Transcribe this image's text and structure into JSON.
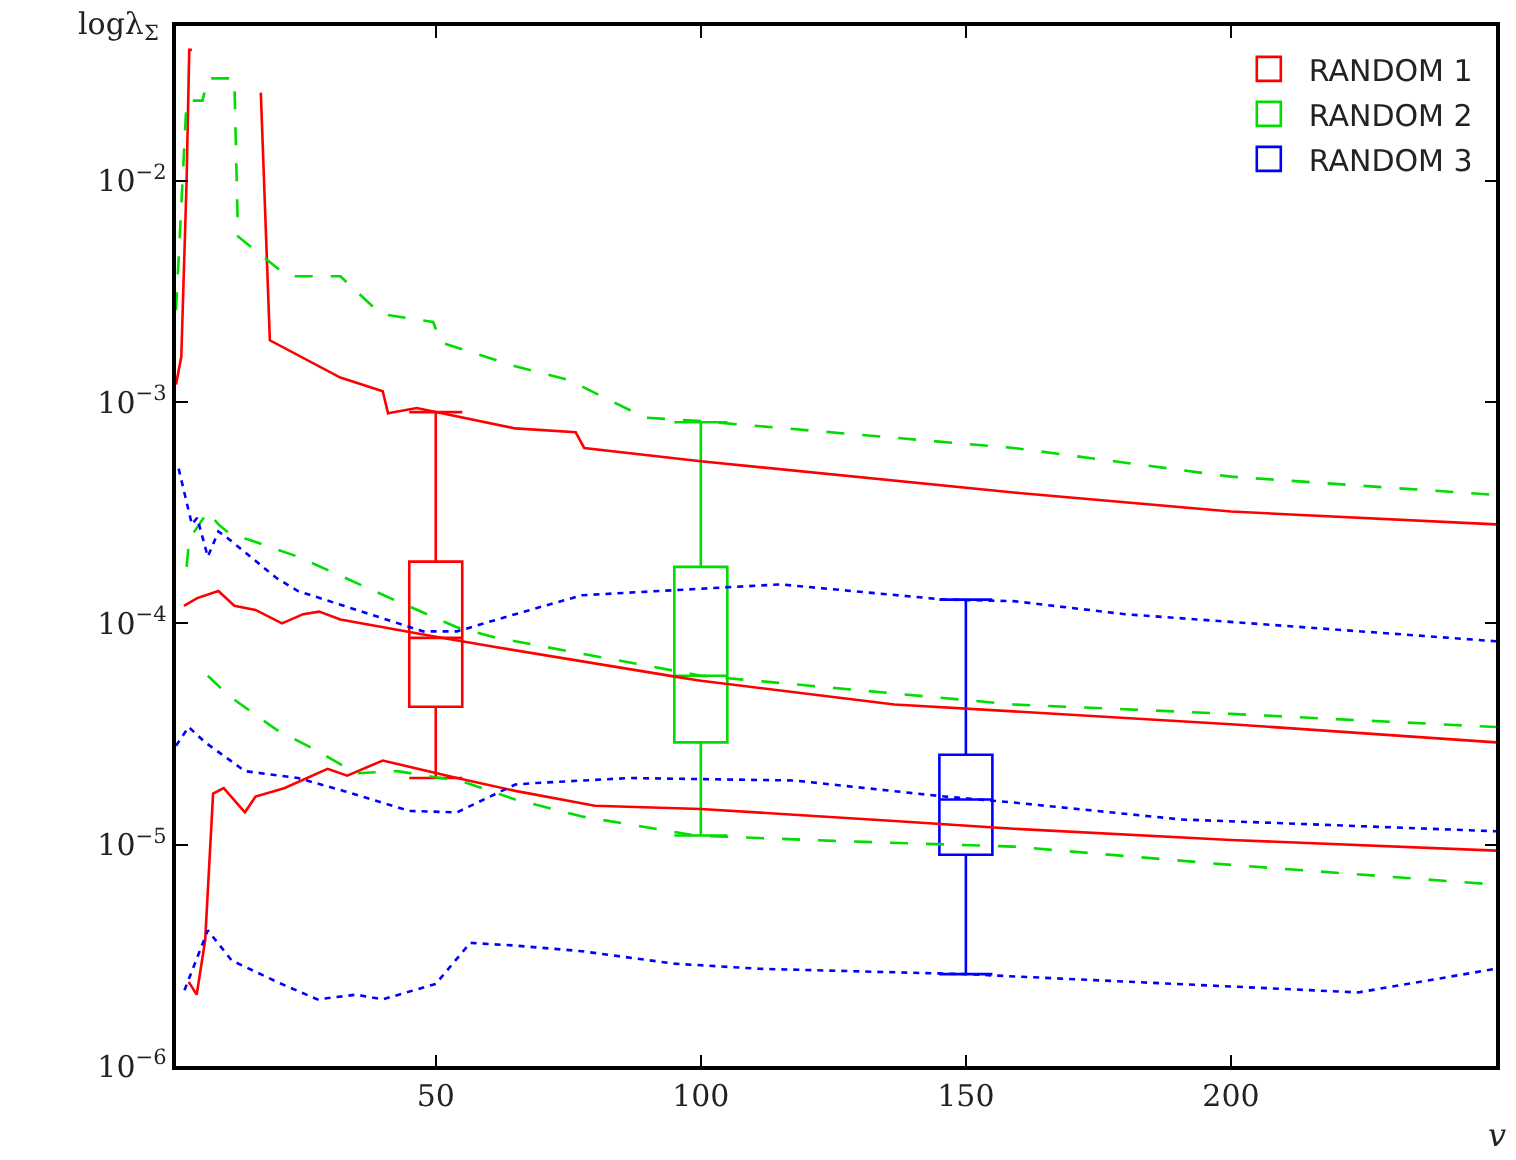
{
  "chart_data": {
    "type": "line",
    "xlabel": "v",
    "ylabel": "logλ$_{Σ}$",
    "log": "y",
    "legend": "top right",
    "xlim": [
      1,
      250
    ],
    "xticks": [
      50,
      100,
      150,
      200
    ],
    "ylim": [
      1e-06,
      0.05
    ],
    "yticks": [
      {
        "value": 1e-06,
        "label": "10$^{−6}$"
      },
      {
        "value": 1e-05,
        "label": "10$^{−5}$"
      },
      {
        "value": 0.0001,
        "label": "10$^{−4}$"
      },
      {
        "value": 0.001,
        "label": "10$^{−3}$"
      },
      {
        "value": 0.01,
        "label": "10$^{−2}$"
      }
    ],
    "series": [
      {
        "color": "#ff0000",
        "line_style": "solid",
        "x": [
          1,
          2,
          3,
          3.5,
          4,
          6,
          17,
          18.7,
          32,
          40,
          41,
          46.4,
          65,
          76.4,
          78,
          100,
          159,
          200,
          250
        ],
        "values": [
          0.0012,
          0.0016,
          0.01,
          0.039,
          0.039,
          null,
          0.025,
          0.0019,
          0.00129,
          0.00112,
          0.00089,
          0.00094,
          0.00076,
          0.00073,
          0.00062,
          0.00054,
          0.00039,
          0.00032,
          0.00028
        ]
      },
      {
        "color": "#ff0000",
        "line_style": "solid",
        "x": [
          2.5,
          5,
          9,
          12,
          16,
          21,
          25,
          28,
          32,
          50,
          61.5,
          96,
          100,
          136.5,
          159,
          200,
          250
        ],
        "values": [
          0.00012,
          0.00013,
          0.00014,
          0.00012,
          0.000115,
          0.0001,
          0.00011,
          0.000113,
          0.000104,
          8.7e-05,
          7.8e-05,
          5.7e-05,
          5.5e-05,
          4.3e-05,
          4e-05,
          3.5e-05,
          2.9e-05
        ]
      },
      {
        "color": "#ff0000",
        "line_style": "solid",
        "x": [
          3.4,
          4.9,
          6.5,
          8,
          10,
          14,
          16,
          21.4,
          29.6,
          33.3,
          40,
          54,
          65,
          80,
          100,
          136.5,
          159,
          200,
          250
        ],
        "values": [
          2.4e-06,
          2.1e-06,
          3.7e-06,
          1.7e-05,
          1.8e-05,
          1.4e-05,
          1.65e-05,
          1.8e-05,
          2.2e-05,
          2.05e-05,
          2.4e-05,
          2e-05,
          1.75e-05,
          1.5e-05,
          1.45e-05,
          1.28e-05,
          1.18e-05,
          1.05e-05,
          9.4e-06
        ]
      },
      {
        "color": "#00dd00",
        "line_style": "dashed",
        "x": [
          1,
          3,
          6,
          7,
          12,
          12.7,
          22,
          32,
          39.6,
          49.5,
          51,
          65,
          75,
          89.5,
          100,
          159,
          200,
          250
        ],
        "values": [
          0.0026,
          0.023,
          0.023,
          0.029,
          0.029,
          0.0056,
          0.0037,
          0.0037,
          0.0025,
          0.0023,
          0.00186,
          0.00145,
          0.00126,
          0.00085,
          0.00082,
          0.00062,
          0.00046,
          0.00038
        ]
      },
      {
        "color": "#00dd00",
        "line_style": "dashed",
        "x": [
          3,
          3.5,
          7,
          9,
          11.5,
          14.5,
          24,
          42.7,
          54,
          61.5,
          100,
          159,
          200,
          250
        ],
        "values": [
          0.00018,
          0.00024,
          0.00032,
          0.00028,
          0.00025,
          0.00024,
          0.0002,
          0.000126,
          9.6e-05,
          8.6e-05,
          5.8e-05,
          4.3e-05,
          3.9e-05,
          3.4e-05
        ]
      },
      {
        "color": "#00dd00",
        "line_style": "dashed",
        "x": [
          7,
          11,
          20,
          27.7,
          35,
          42.7,
          55,
          65,
          77.6,
          99,
          125,
          159,
          200,
          250
        ],
        "values": [
          5.8e-05,
          4.7e-05,
          3.3e-05,
          2.65e-05,
          2.1e-05,
          2.15e-05,
          1.93e-05,
          1.6e-05,
          1.34e-05,
          1.1e-05,
          1.04e-05,
          9.8e-06,
          8.1e-06,
          6.6e-06
        ]
      },
      {
        "color": "#0000ff",
        "line_style": "dotted",
        "x": [
          1.5,
          4,
          5,
          7,
          9,
          11,
          20,
          24,
          47.6,
          54,
          65,
          77.6,
          115,
          146,
          159,
          180,
          250
        ],
        "values": [
          0.0005,
          0.00028,
          0.0003,
          0.0002,
          0.00026,
          0.00024,
          0.00016,
          0.00014,
          9.2e-05,
          9.2e-05,
          0.00011,
          0.000134,
          0.00015,
          0.000128,
          0.000126,
          0.00011,
          8.3e-05
        ]
      },
      {
        "color": "#0000ff",
        "line_style": "dotted",
        "x": [
          1,
          3.4,
          6.5,
          14,
          24,
          32.6,
          45,
          54,
          65,
          69,
          86.5,
          117.6,
          146,
          159,
          190.6,
          250
        ],
        "values": [
          2.8e-05,
          3.4e-05,
          2.9e-05,
          2.15e-05,
          2e-05,
          1.75e-05,
          1.42e-05,
          1.4e-05,
          1.87e-05,
          1.9e-05,
          2e-05,
          1.95e-05,
          1.65e-05,
          1.55e-05,
          1.3e-05,
          1.15e-05
        ]
      },
      {
        "color": "#0000ff",
        "line_style": "dotted",
        "x": [
          2.6,
          7,
          11.5,
          20,
          27.7,
          35,
          40,
          50,
          56.5,
          65,
          77.6,
          95,
          111,
          150,
          224,
          250
        ],
        "values": [
          2.2e-06,
          4.1e-06,
          3e-06,
          2.4e-06,
          2e-06,
          2.1e-06,
          2e-06,
          2.35e-06,
          3.6e-06,
          3.5e-06,
          3.3e-06,
          2.9e-06,
          2.75e-06,
          2.6e-06,
          2.15e-06,
          2.75e-06
        ]
      },
      {
        "type": "box",
        "name": "RANDOM 1",
        "color": "#ff0000",
        "x": [
          50
        ],
        "boxes": [
          {
            "low": 2e-05,
            "q1": 4.2e-05,
            "median": 8.6e-05,
            "q3": 0.00019,
            "high": 0.0009
          }
        ]
      },
      {
        "type": "box",
        "name": "RANDOM 2",
        "color": "#00dd00",
        "x": [
          100
        ],
        "boxes": [
          {
            "low": 1.1e-05,
            "q1": 2.9e-05,
            "median": 5.8e-05,
            "q3": 0.00018,
            "high": 0.00081
          }
        ]
      },
      {
        "type": "box",
        "name": "RANDOM 3",
        "color": "#0000ff",
        "x": [
          150
        ],
        "boxes": [
          {
            "low": 2.6e-06,
            "q1": 9e-06,
            "median": 1.6e-05,
            "q3": 2.55e-05,
            "high": 0.000128
          }
        ]
      }
    ]
  }
}
